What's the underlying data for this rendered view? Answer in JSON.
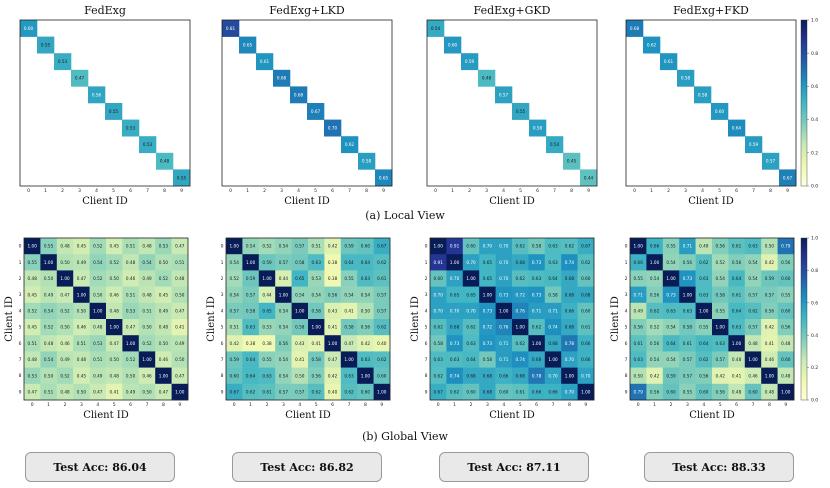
{
  "section_labels": {
    "local": "(a) Local View",
    "global": "(b) Global View"
  },
  "colorbar_ticks": [
    "1.0",
    "0.8",
    "0.6",
    "0.4",
    "0.2",
    "0.0"
  ],
  "colorscale": [
    "#ffffd9",
    "#edf8b1",
    "#c7e9b4",
    "#7fcdbb",
    "#41b6c4",
    "#1d91c0",
    "#225ea8",
    "#253494",
    "#081d58"
  ],
  "accuracies": [
    {
      "label": "Test Acc: 86.04"
    },
    {
      "label": "Test Acc: 86.82"
    },
    {
      "label": "Test Acc: 87.11"
    },
    {
      "label": "Test Acc: 88.33"
    }
  ],
  "chart_data": [
    {
      "type": "heatmap",
      "view": "local",
      "title": "FedExg",
      "xlabel": "Client ID",
      "ylabel": "",
      "x": [
        "0",
        "1",
        "2",
        "3",
        "4",
        "5",
        "6",
        "7",
        "8",
        "9"
      ],
      "y": [
        "0",
        "1",
        "2",
        "3",
        "4",
        "5",
        "6",
        "7",
        "8",
        "9"
      ],
      "diagonal": [
        0.6,
        0.55,
        0.53,
        0.47,
        0.56,
        0.55,
        0.53,
        0.53,
        0.48,
        0.55
      ],
      "vmin": 0,
      "vmax": 1
    },
    {
      "type": "heatmap",
      "view": "local",
      "title": "FedExg+LKD",
      "xlabel": "Client ID",
      "ylabel": "",
      "x": [
        "0",
        "1",
        "2",
        "3",
        "4",
        "5",
        "6",
        "7",
        "8",
        "9"
      ],
      "y": [
        "0",
        "1",
        "2",
        "3",
        "4",
        "5",
        "6",
        "7",
        "8",
        "9"
      ],
      "diagonal": [
        0.81,
        0.65,
        0.61,
        0.68,
        0.68,
        0.67,
        0.7,
        0.62,
        0.58,
        0.65
      ],
      "vmin": 0,
      "vmax": 1
    },
    {
      "type": "heatmap",
      "view": "local",
      "title": "FedExg+GKD",
      "xlabel": "Client ID",
      "ylabel": "",
      "x": [
        "0",
        "1",
        "2",
        "3",
        "4",
        "5",
        "6",
        "7",
        "8",
        "9"
      ],
      "y": [
        "0",
        "1",
        "2",
        "3",
        "4",
        "5",
        "6",
        "7",
        "8",
        "9"
      ],
      "diagonal": [
        0.54,
        0.6,
        0.59,
        0.48,
        0.57,
        0.55,
        0.58,
        0.54,
        0.45,
        0.44
      ],
      "vmin": 0,
      "vmax": 1
    },
    {
      "type": "heatmap",
      "view": "local",
      "title": "FedExg+FKD",
      "xlabel": "Client ID",
      "ylabel": "",
      "x": [
        "0",
        "1",
        "2",
        "3",
        "4",
        "5",
        "6",
        "7",
        "8",
        "9"
      ],
      "y": [
        "0",
        "1",
        "2",
        "3",
        "4",
        "5",
        "6",
        "7",
        "8",
        "9"
      ],
      "diagonal": [
        0.68,
        0.62,
        0.61,
        0.58,
        0.58,
        0.6,
        0.64,
        0.59,
        0.57,
        0.67
      ],
      "vmin": 0,
      "vmax": 1
    },
    {
      "type": "heatmap",
      "view": "global",
      "title": "",
      "xlabel": "Client ID",
      "ylabel": "Client ID",
      "x": [
        "0",
        "1",
        "2",
        "3",
        "4",
        "5",
        "6",
        "7",
        "8",
        "9"
      ],
      "y": [
        "0",
        "1",
        "2",
        "3",
        "4",
        "5",
        "6",
        "7",
        "8",
        "9"
      ],
      "values": [
        [
          1.0,
          0.55,
          0.48,
          0.45,
          0.52,
          0.45,
          0.51,
          0.48,
          0.53,
          0.47
        ],
        [
          0.55,
          1.0,
          0.5,
          0.49,
          0.54,
          0.52,
          0.48,
          0.54,
          0.5,
          0.51
        ],
        [
          0.48,
          0.5,
          1.0,
          0.47,
          0.52,
          0.5,
          0.46,
          0.49,
          0.52,
          0.48
        ],
        [
          0.45,
          0.49,
          0.47,
          1.0,
          0.5,
          0.46,
          0.51,
          0.48,
          0.45,
          0.5
        ],
        [
          0.52,
          0.54,
          0.52,
          0.5,
          1.0,
          0.48,
          0.53,
          0.51,
          0.49,
          0.47
        ],
        [
          0.45,
          0.52,
          0.5,
          0.46,
          0.48,
          1.0,
          0.47,
          0.5,
          0.48,
          0.41
        ],
        [
          0.51,
          0.48,
          0.46,
          0.51,
          0.53,
          0.47,
          1.0,
          0.52,
          0.5,
          0.49
        ],
        [
          0.48,
          0.54,
          0.49,
          0.48,
          0.51,
          0.5,
          0.52,
          1.0,
          0.46,
          0.5
        ],
        [
          0.53,
          0.5,
          0.52,
          0.45,
          0.49,
          0.48,
          0.5,
          0.46,
          1.0,
          0.47
        ],
        [
          0.47,
          0.51,
          0.48,
          0.5,
          0.47,
          0.41,
          0.49,
          0.5,
          0.47,
          1.0
        ]
      ],
      "vmin": 0.3,
      "vmax": 1.0
    },
    {
      "type": "heatmap",
      "view": "global",
      "title": "",
      "xlabel": "Client ID",
      "ylabel": "Client ID",
      "x": [
        "0",
        "1",
        "2",
        "3",
        "4",
        "5",
        "6",
        "7",
        "8",
        "9"
      ],
      "y": [
        "0",
        "1",
        "2",
        "3",
        "4",
        "5",
        "6",
        "7",
        "8",
        "9"
      ],
      "values": [
        [
          1.0,
          0.54,
          0.52,
          0.54,
          0.57,
          0.51,
          0.42,
          0.59,
          0.6,
          0.67
        ],
        [
          0.54,
          1.0,
          0.59,
          0.57,
          0.58,
          0.63,
          0.38,
          0.64,
          0.64,
          0.62
        ],
        [
          0.52,
          0.59,
          1.0,
          0.44,
          0.65,
          0.53,
          0.38,
          0.55,
          0.63,
          0.61
        ],
        [
          0.54,
          0.57,
          0.44,
          1.0,
          0.54,
          0.54,
          0.56,
          0.54,
          0.54,
          0.57
        ],
        [
          0.57,
          0.58,
          0.65,
          0.54,
          1.0,
          0.58,
          0.43,
          0.41,
          0.5,
          0.57
        ],
        [
          0.51,
          0.63,
          0.53,
          0.54,
          0.58,
          1.0,
          0.41,
          0.58,
          0.56,
          0.62
        ],
        [
          0.42,
          0.38,
          0.38,
          0.56,
          0.43,
          0.41,
          1.0,
          0.47,
          0.42,
          0.4
        ],
        [
          0.59,
          0.64,
          0.55,
          0.54,
          0.41,
          0.58,
          0.47,
          1.0,
          0.63,
          0.62
        ],
        [
          0.6,
          0.64,
          0.63,
          0.54,
          0.5,
          0.56,
          0.42,
          0.63,
          1.0,
          0.6
        ],
        [
          0.67,
          0.62,
          0.61,
          0.57,
          0.57,
          0.62,
          0.4,
          0.62,
          0.6,
          1.0
        ]
      ],
      "vmin": 0.3,
      "vmax": 1.0
    },
    {
      "type": "heatmap",
      "view": "global",
      "title": "",
      "xlabel": "Client ID",
      "ylabel": "Client ID",
      "x": [
        "0",
        "1",
        "2",
        "3",
        "4",
        "5",
        "6",
        "7",
        "8",
        "9"
      ],
      "y": [
        "0",
        "1",
        "2",
        "3",
        "4",
        "5",
        "6",
        "7",
        "8",
        "9"
      ],
      "values": [
        [
          1.0,
          0.91,
          0.6,
          0.7,
          0.7,
          0.62,
          0.58,
          0.63,
          0.62,
          0.67
        ],
        [
          0.91,
          1.0,
          0.7,
          0.65,
          0.7,
          0.68,
          0.73,
          0.63,
          0.74,
          0.62
        ],
        [
          0.6,
          0.7,
          1.0,
          0.65,
          0.7,
          0.62,
          0.63,
          0.64,
          0.68,
          0.6
        ],
        [
          0.7,
          0.65,
          0.65,
          1.0,
          0.73,
          0.72,
          0.73,
          0.58,
          0.68,
          0.68
        ],
        [
          0.7,
          0.7,
          0.7,
          0.73,
          1.0,
          0.76,
          0.71,
          0.71,
          0.66,
          0.6
        ],
        [
          0.62,
          0.68,
          0.62,
          0.72,
          0.76,
          1.0,
          0.62,
          0.74,
          0.68,
          0.61
        ],
        [
          0.58,
          0.73,
          0.63,
          0.73,
          0.71,
          0.62,
          1.0,
          0.68,
          0.78,
          0.66
        ],
        [
          0.63,
          0.63,
          0.64,
          0.58,
          0.71,
          0.74,
          0.68,
          1.0,
          0.7,
          0.66
        ],
        [
          0.62,
          0.74,
          0.68,
          0.68,
          0.66,
          0.68,
          0.78,
          0.7,
          1.0,
          0.7
        ],
        [
          0.67,
          0.62,
          0.6,
          0.68,
          0.6,
          0.61,
          0.66,
          0.66,
          0.7,
          1.0
        ]
      ],
      "vmin": 0.3,
      "vmax": 1.0
    },
    {
      "type": "heatmap",
      "view": "global",
      "title": "",
      "xlabel": "Client ID",
      "ylabel": "Client ID",
      "x": [
        "0",
        "1",
        "2",
        "3",
        "4",
        "5",
        "6",
        "7",
        "8",
        "9"
      ],
      "y": [
        "0",
        "1",
        "2",
        "3",
        "4",
        "5",
        "6",
        "7",
        "8",
        "9"
      ],
      "values": [
        [
          1.0,
          0.66,
          0.55,
          0.71,
          0.49,
          0.56,
          0.61,
          0.63,
          0.5,
          0.79
        ],
        [
          0.66,
          1.0,
          0.54,
          0.56,
          0.62,
          0.52,
          0.56,
          0.54,
          0.42,
          0.56
        ],
        [
          0.55,
          0.54,
          1.0,
          0.73,
          0.63,
          0.54,
          0.64,
          0.54,
          0.59,
          0.6
        ],
        [
          0.71,
          0.56,
          0.73,
          1.0,
          0.63,
          0.58,
          0.61,
          0.57,
          0.57,
          0.55
        ],
        [
          0.49,
          0.62,
          0.63,
          0.63,
          1.0,
          0.55,
          0.64,
          0.62,
          0.56,
          0.6
        ],
        [
          0.56,
          0.52,
          0.54,
          0.58,
          0.55,
          1.0,
          0.63,
          0.57,
          0.42,
          0.56
        ],
        [
          0.61,
          0.56,
          0.64,
          0.61,
          0.64,
          0.63,
          1.0,
          0.48,
          0.41,
          0.48
        ],
        [
          0.63,
          0.54,
          0.54,
          0.57,
          0.62,
          0.57,
          0.48,
          1.0,
          0.46,
          0.6
        ],
        [
          0.5,
          0.42,
          0.59,
          0.57,
          0.56,
          0.42,
          0.41,
          0.46,
          1.0,
          0.48
        ],
        [
          0.79,
          0.56,
          0.6,
          0.55,
          0.6,
          0.56,
          0.48,
          0.6,
          0.48,
          1.0
        ]
      ],
      "vmin": 0.3,
      "vmax": 1.0,
      "colorbar_ticks": [
        "1.0",
        "0.8",
        "0.6",
        "0.4",
        "0.2",
        "0.0"
      ]
    }
  ]
}
